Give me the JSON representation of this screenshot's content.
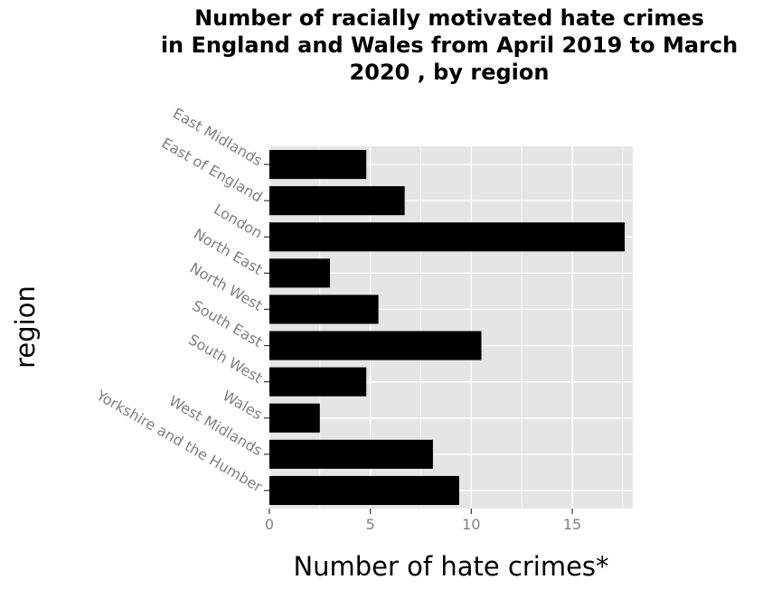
{
  "chart_data": {
    "type": "bar",
    "orientation": "horizontal",
    "title": "Number of racially motivated hate crimes in England and Wales from April 2019 to March 2020 , by region",
    "title_lines": [
      "Number of racially motivated hate crimes",
      "in England and Wales from April 2019 to March",
      "2020 , by region"
    ],
    "xlabel": "Number of hate crimes*",
    "ylabel": "region",
    "categories": [
      "East Midlands",
      "East of England",
      "London",
      "North East",
      "North West",
      "South East",
      "South West",
      "Wales",
      "West Midlands",
      "Yorkshire and the Humber"
    ],
    "values": [
      4.8,
      6.7,
      17.6,
      3.0,
      5.4,
      10.5,
      4.8,
      2.5,
      8.1,
      9.4
    ],
    "xlim": [
      0,
      18
    ],
    "xticks": [
      0,
      5,
      10,
      15
    ],
    "grid": true,
    "legend": "none",
    "colors": {
      "bar": "#000000",
      "panel": "#e5e5e5",
      "grid": "#ffffff",
      "tick_label": "#808080"
    }
  }
}
